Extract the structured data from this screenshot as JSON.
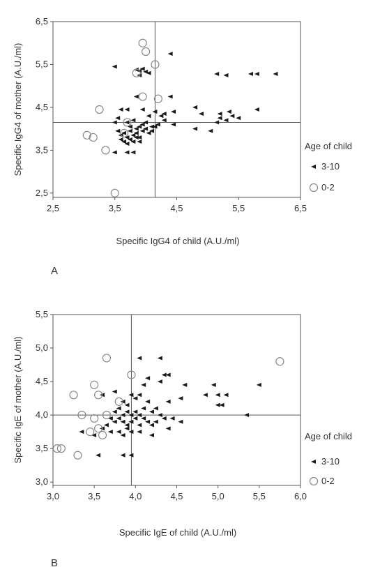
{
  "chart_data": [
    {
      "type": "scatter",
      "panel_label": "A",
      "xlabel": "Specific IgG4 of child (A.U./ml)",
      "ylabel": "Specific IgG4 of mother (A.U./ml)",
      "xlim": [
        2.5,
        6.5
      ],
      "ylim": [
        2.4,
        6.5
      ],
      "x_ticks": [
        "2,5",
        "3,5",
        "4,5",
        "5,5",
        "6,5"
      ],
      "y_ticks": [
        "2,5",
        "3,5",
        "4,5",
        "5,5",
        "6,5"
      ],
      "reference_lines": {
        "x": 4.15,
        "y": 4.15
      },
      "legend": {
        "title": "Age of child",
        "entries": [
          "3-10",
          "0-2"
        ]
      },
      "series": [
        {
          "name": "3-10",
          "marker": "filled",
          "points": [
            [
              3.5,
              5.45
            ],
            [
              3.85,
              5.38
            ],
            [
              3.9,
              5.35
            ],
            [
              3.95,
              5.4
            ],
            [
              4.0,
              5.33
            ],
            [
              3.9,
              5.25
            ],
            [
              4.05,
              5.3
            ],
            [
              4.4,
              5.75
            ],
            [
              5.15,
              5.28
            ],
            [
              5.3,
              5.25
            ],
            [
              5.7,
              5.28
            ],
            [
              5.8,
              5.28
            ],
            [
              6.1,
              5.28
            ],
            [
              4.4,
              4.75
            ],
            [
              3.85,
              4.75
            ],
            [
              3.6,
              4.45
            ],
            [
              3.95,
              4.45
            ],
            [
              4.15,
              4.4
            ],
            [
              4.3,
              4.35
            ],
            [
              4.45,
              4.4
            ],
            [
              4.8,
              4.5
            ],
            [
              4.9,
              4.35
            ],
            [
              5.2,
              4.35
            ],
            [
              5.35,
              4.4
            ],
            [
              5.4,
              4.3
            ],
            [
              5.3,
              4.2
            ],
            [
              5.5,
              4.25
            ],
            [
              5.8,
              4.45
            ],
            [
              4.45,
              4.1
            ],
            [
              4.8,
              4.0
            ],
            [
              5.05,
              3.95
            ],
            [
              5.15,
              4.15
            ],
            [
              5.2,
              4.25
            ],
            [
              3.5,
              4.15
            ],
            [
              3.55,
              4.25
            ],
            [
              3.7,
              4.15
            ],
            [
              3.75,
              4.05
            ],
            [
              3.8,
              4.2
            ],
            [
              3.85,
              4.0
            ],
            [
              3.9,
              4.05
            ],
            [
              3.95,
              4.1
            ],
            [
              4.0,
              4.15
            ],
            [
              4.05,
              4.3
            ],
            [
              4.1,
              4.05
            ],
            [
              4.2,
              4.1
            ],
            [
              4.25,
              4.3
            ],
            [
              4.3,
              4.2
            ],
            [
              3.55,
              3.95
            ],
            [
              3.6,
              3.85
            ],
            [
              3.65,
              3.9
            ],
            [
              3.7,
              3.8
            ],
            [
              3.75,
              3.95
            ],
            [
              3.8,
              3.85
            ],
            [
              3.85,
              3.9
            ],
            [
              3.9,
              3.8
            ],
            [
              3.95,
              3.95
            ],
            [
              4.0,
              4.0
            ],
            [
              4.05,
              3.9
            ],
            [
              4.1,
              3.95
            ],
            [
              4.15,
              4.05
            ],
            [
              3.6,
              3.75
            ],
            [
              3.65,
              3.7
            ],
            [
              3.7,
              3.65
            ],
            [
              3.8,
              3.7
            ],
            [
              3.9,
              3.7
            ],
            [
              3.75,
              3.75
            ],
            [
              3.85,
              3.8
            ],
            [
              3.5,
              3.45
            ],
            [
              3.7,
              3.45
            ],
            [
              3.8,
              3.45
            ],
            [
              3.7,
              4.45
            ]
          ]
        },
        {
          "name": "0-2",
          "marker": "open",
          "points": [
            [
              3.95,
              6.0
            ],
            [
              4.0,
              5.8
            ],
            [
              4.15,
              5.5
            ],
            [
              3.85,
              5.3
            ],
            [
              4.2,
              4.7
            ],
            [
              3.95,
              4.75
            ],
            [
              3.25,
              4.45
            ],
            [
              3.05,
              3.85
            ],
            [
              3.15,
              3.8
            ],
            [
              3.35,
              3.5
            ],
            [
              3.5,
              2.5
            ],
            [
              3.7,
              4.15
            ],
            [
              3.65,
              3.9
            ]
          ]
        }
      ]
    },
    {
      "type": "scatter",
      "panel_label": "B",
      "xlabel": "Specific IgE of child (A.U./ml)",
      "ylabel": "Specific IgE of mother (A.U./ml)",
      "xlim": [
        3.0,
        6.0
      ],
      "ylim": [
        2.95,
        5.5
      ],
      "x_ticks": [
        "3,0",
        "3,5",
        "4,0",
        "4,5",
        "5,0",
        "5,5",
        "6,0"
      ],
      "y_ticks": [
        "3,0",
        "3,5",
        "4,0",
        "4,5",
        "5,0",
        "5,5"
      ],
      "reference_lines": {
        "x": 3.95,
        "y": 4.0
      },
      "legend": {
        "title": "Age of child",
        "entries": [
          "3-10",
          "0-2"
        ]
      },
      "series": [
        {
          "name": "3-10",
          "marker": "filled",
          "points": [
            [
              4.05,
              4.85
            ],
            [
              4.3,
              4.85
            ],
            [
              4.15,
              4.55
            ],
            [
              4.35,
              4.6
            ],
            [
              4.4,
              4.6
            ],
            [
              4.3,
              4.5
            ],
            [
              4.1,
              4.45
            ],
            [
              4.6,
              4.45
            ],
            [
              4.95,
              4.45
            ],
            [
              5.5,
              4.45
            ],
            [
              4.85,
              4.3
            ],
            [
              5.0,
              4.3
            ],
            [
              5.1,
              4.3
            ],
            [
              5.05,
              4.15
            ],
            [
              4.55,
              4.25
            ],
            [
              4.4,
              4.2
            ],
            [
              3.95,
              4.3
            ],
            [
              4.0,
              4.25
            ],
            [
              4.05,
              4.3
            ],
            [
              3.85,
              4.2
            ],
            [
              3.9,
              4.15
            ],
            [
              3.8,
              4.1
            ],
            [
              3.75,
              4.05
            ],
            [
              3.85,
              4.0
            ],
            [
              3.9,
              4.05
            ],
            [
              3.95,
              4.0
            ],
            [
              4.0,
              4.05
            ],
            [
              4.05,
              4.0
            ],
            [
              4.1,
              4.1
            ],
            [
              4.15,
              4.2
            ],
            [
              4.2,
              4.05
            ],
            [
              4.25,
              4.1
            ],
            [
              4.3,
              4.0
            ],
            [
              3.7,
              3.95
            ],
            [
              3.75,
              3.9
            ],
            [
              3.8,
              3.95
            ],
            [
              3.85,
              3.9
            ],
            [
              3.9,
              3.85
            ],
            [
              3.95,
              3.9
            ],
            [
              4.0,
              3.95
            ],
            [
              4.05,
              3.85
            ],
            [
              4.1,
              3.95
            ],
            [
              4.15,
              3.9
            ],
            [
              4.2,
              3.85
            ],
            [
              4.25,
              3.9
            ],
            [
              4.35,
              3.95
            ],
            [
              4.45,
              3.95
            ],
            [
              4.55,
              3.9
            ],
            [
              4.4,
              3.8
            ],
            [
              5.35,
              4.0
            ],
            [
              3.6,
              3.8
            ],
            [
              3.65,
              3.85
            ],
            [
              3.7,
              3.75
            ],
            [
              3.8,
              3.75
            ],
            [
              3.9,
              3.8
            ],
            [
              3.95,
              3.75
            ],
            [
              4.05,
              3.75
            ],
            [
              4.2,
              3.7
            ],
            [
              3.85,
              3.7
            ],
            [
              3.35,
              3.75
            ],
            [
              3.5,
              3.7
            ],
            [
              3.6,
              4.3
            ],
            [
              3.75,
              4.35
            ],
            [
              3.55,
              3.4
            ],
            [
              3.85,
              3.4
            ],
            [
              3.95,
              3.4
            ],
            [
              5.0,
              4.15
            ]
          ]
        },
        {
          "name": "0-2",
          "marker": "open",
          "points": [
            [
              3.65,
              4.85
            ],
            [
              3.95,
              4.6
            ],
            [
              3.5,
              4.45
            ],
            [
              3.25,
              4.3
            ],
            [
              3.55,
              4.3
            ],
            [
              3.8,
              4.2
            ],
            [
              3.65,
              4.0
            ],
            [
              3.5,
              3.95
            ],
            [
              3.35,
              4.0
            ],
            [
              3.55,
              3.8
            ],
            [
              3.45,
              3.75
            ],
            [
              3.6,
              3.7
            ],
            [
              3.05,
              3.5
            ],
            [
              3.1,
              3.5
            ],
            [
              3.3,
              3.4
            ],
            [
              5.75,
              4.8
            ]
          ]
        }
      ]
    }
  ]
}
